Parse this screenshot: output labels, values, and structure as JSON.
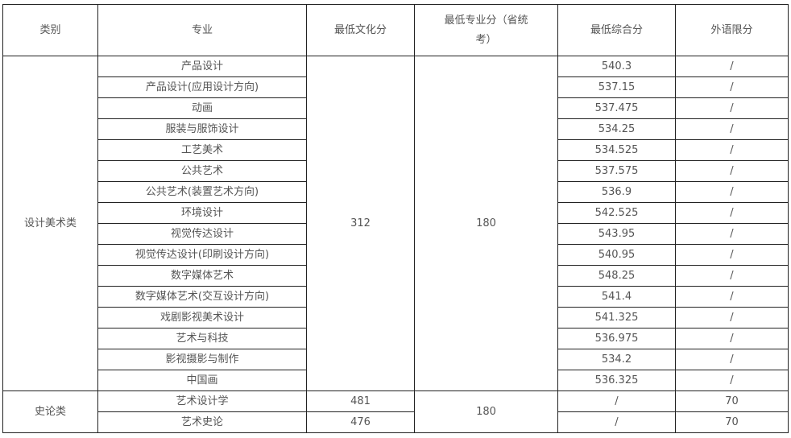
{
  "headers": [
    "类别",
    "专业",
    "最低文化分",
    "最低专业分（省统考）",
    "最低综合分",
    "外语限分"
  ],
  "groups": [
    {
      "category": "设计美术类",
      "culture_score": "312",
      "major_score": "180",
      "culture_merged": true,
      "rows": [
        {
          "major": "产品设计",
          "composite": "540.3",
          "foreign": "/"
        },
        {
          "major": "产品设计(应用设计方向)",
          "composite": "537.15",
          "foreign": "/"
        },
        {
          "major": "动画",
          "composite": "537.475",
          "foreign": "/"
        },
        {
          "major": "服装与服饰设计",
          "composite": "534.25",
          "foreign": "/"
        },
        {
          "major": "工艺美术",
          "composite": "534.525",
          "foreign": "/"
        },
        {
          "major": "公共艺术",
          "composite": "537.575",
          "foreign": "/"
        },
        {
          "major": "公共艺术(装置艺术方向)",
          "composite": "536.9",
          "foreign": "/"
        },
        {
          "major": "环境设计",
          "composite": "542.525",
          "foreign": "/"
        },
        {
          "major": "视觉传达设计",
          "composite": "543.95",
          "foreign": "/"
        },
        {
          "major": "视觉传达设计(印刷设计方向)",
          "composite": "540.95",
          "foreign": "/"
        },
        {
          "major": "数字媒体艺术",
          "composite": "548.25",
          "foreign": "/"
        },
        {
          "major": "数字媒体艺术(交互设计方向)",
          "composite": "541.4",
          "foreign": "/"
        },
        {
          "major": "戏剧影视美术设计",
          "composite": "541.325",
          "foreign": "/"
        },
        {
          "major": "艺术与科技",
          "composite": "536.975",
          "foreign": "/"
        },
        {
          "major": "影视摄影与制作",
          "composite": "534.2",
          "foreign": "/"
        },
        {
          "major": "中国画",
          "composite": "536.325",
          "foreign": "/"
        }
      ]
    },
    {
      "category": "史论类",
      "major_score": "180",
      "culture_merged": false,
      "rows": [
        {
          "major": "艺术设计学",
          "culture": "481",
          "composite": "/",
          "foreign": "70"
        },
        {
          "major": "艺术史论",
          "culture": "476",
          "composite": "/",
          "foreign": "70"
        }
      ]
    }
  ]
}
